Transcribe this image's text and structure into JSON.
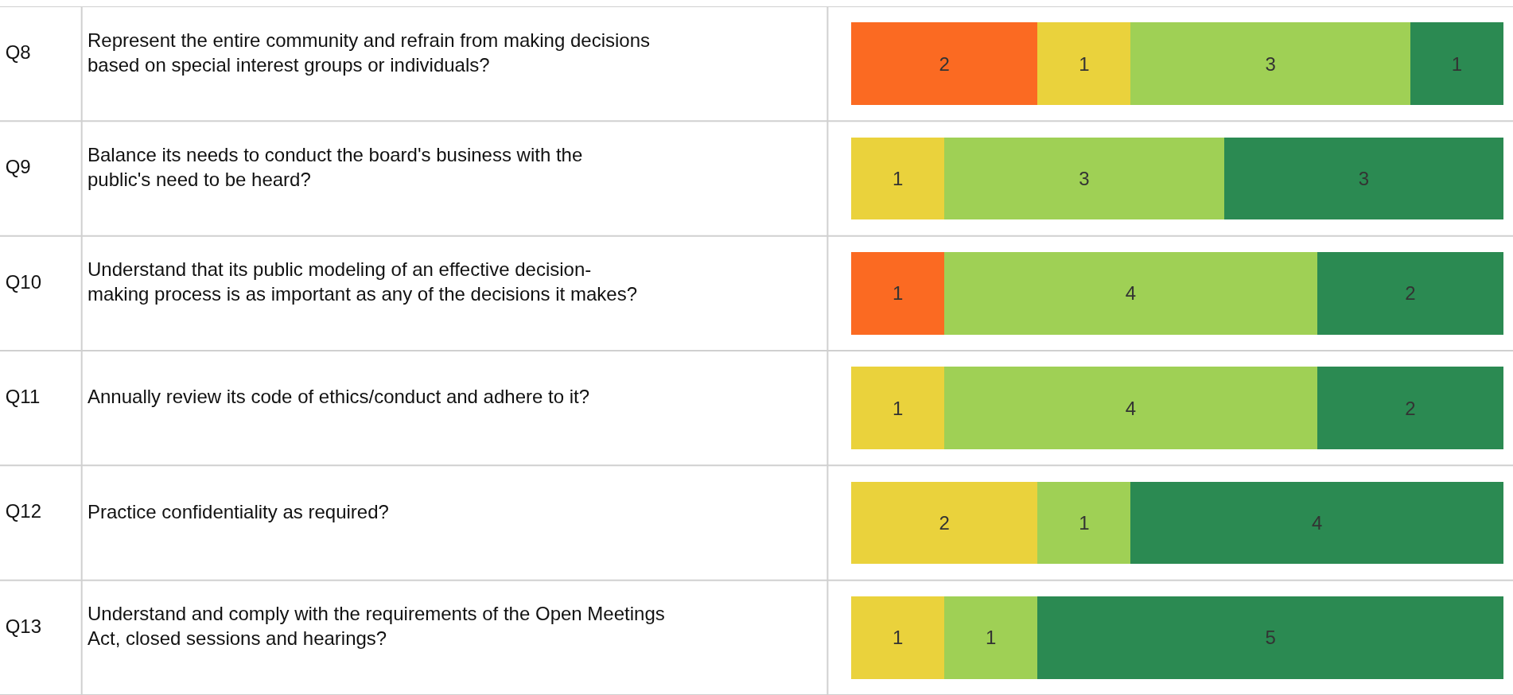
{
  "chart_data": {
    "type": "bar",
    "orientation": "horizontal",
    "stacked": true,
    "data_labels": true,
    "grid": false,
    "categories": [
      "Q8",
      "Q9",
      "Q10",
      "Q11",
      "Q12",
      "Q13"
    ],
    "annotations": [
      "Represent the entire community and refrain from making decisions based on special interest groups or individuals?",
      "Balance its needs to conduct the board's business with the public's need to be heard?",
      "Understand that its public modeling of an effective decision-making process is as important as any of the decisions it makes?",
      "Annually review its code of ethics/conduct and adhere to it?",
      "Practice confidentiality as required?",
      "Understand and comply with the requirements of the Open Meetings Act, closed sessions and hearings?"
    ],
    "series": [
      {
        "color": "#fb6a22",
        "values": [
          2,
          null,
          1,
          null,
          null,
          null
        ]
      },
      {
        "color": "#ead23c",
        "values": [
          1,
          1,
          null,
          1,
          2,
          1
        ]
      },
      {
        "color": "#9fd055",
        "values": [
          3,
          3,
          4,
          4,
          1,
          1
        ]
      },
      {
        "color": "#2b8a52",
        "values": [
          1,
          3,
          2,
          2,
          4,
          5
        ]
      }
    ]
  }
}
